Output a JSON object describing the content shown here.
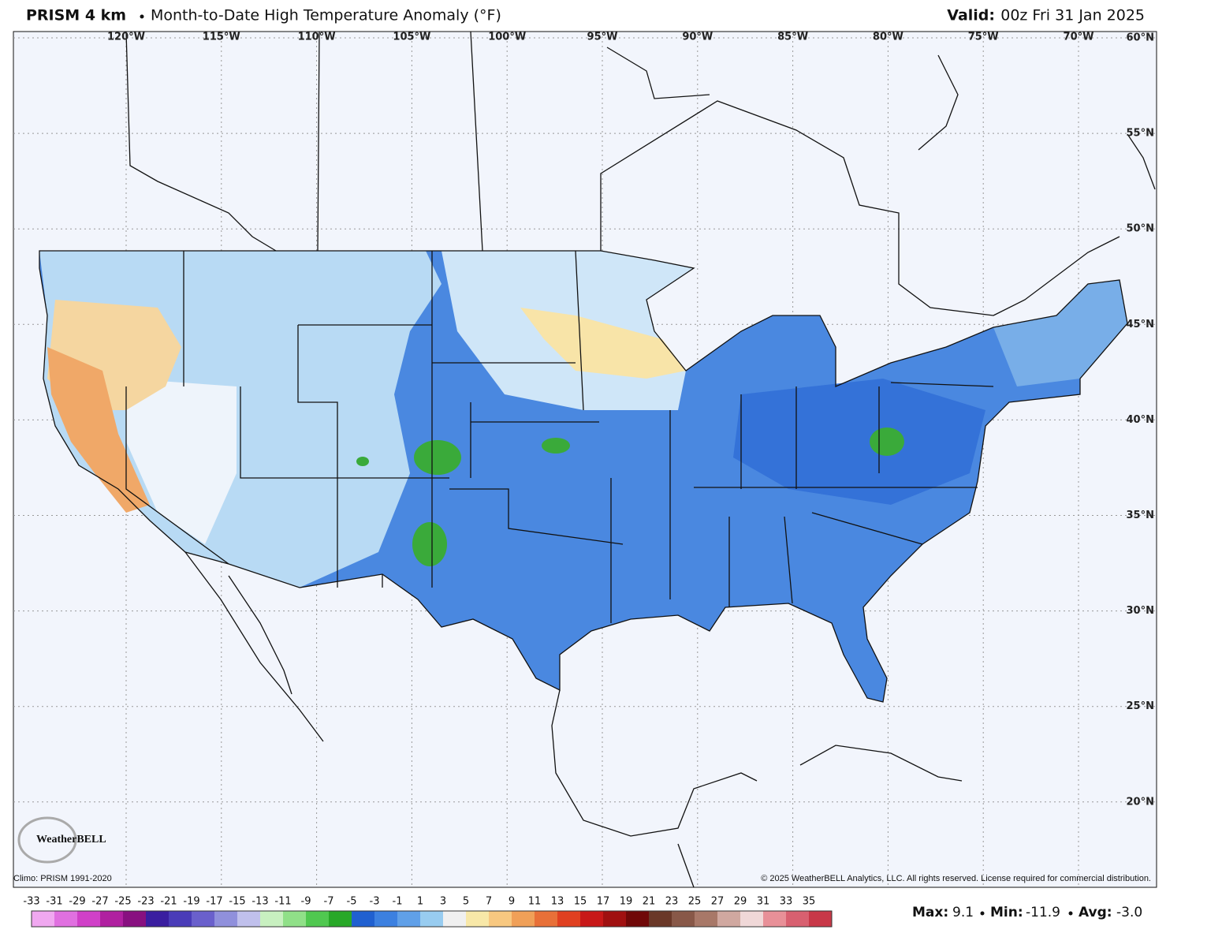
{
  "header": {
    "product": "PRISM 4 km",
    "title": "Month-to-Date High Temperature Anomaly (°F)",
    "valid_label": "Valid:",
    "valid_value": "00z Fri 31 Jan 2025"
  },
  "map": {
    "lon_labels": [
      "120°W",
      "115°W",
      "110°W",
      "105°W",
      "100°W",
      "95°W",
      "90°W",
      "85°W",
      "80°W",
      "75°W",
      "70°W"
    ],
    "lat_labels": [
      "60°N",
      "55°N",
      "50°N",
      "45°N",
      "40°N",
      "35°N",
      "30°N",
      "25°N",
      "20°N"
    ],
    "logo": "WeatherBELL",
    "climo": "Climo: PRISM 1991-2020",
    "copyright": "© 2025 WeatherBELL Analytics, LLC. All rights reserved. License required for commercial distribution."
  },
  "colorbar": {
    "labels": [
      -33,
      -31,
      -29,
      -27,
      -25,
      -23,
      -21,
      -19,
      -17,
      -15,
      -13,
      -11,
      -9,
      -7,
      -5,
      -3,
      -1,
      1,
      3,
      5,
      7,
      9,
      11,
      13,
      15,
      17,
      19,
      21,
      23,
      25,
      27,
      29,
      31,
      33,
      35
    ],
    "colors": [
      "#f0a8f0",
      "#e070e0",
      "#d040c8",
      "#b020a0",
      "#881080",
      "#3a1ea0",
      "#4a3cb8",
      "#6a60cc",
      "#9090dc",
      "#c0c0ec",
      "#c8f0c0",
      "#90e088",
      "#50c850",
      "#28a828",
      "#2060d0",
      "#3c80e0",
      "#60a0e8",
      "#98ccf0",
      "#f0f0f0",
      "#f8e8a8",
      "#f8c880",
      "#f0a058",
      "#e87038",
      "#e04020",
      "#c81818",
      "#a01010",
      "#700808",
      "#6a3828",
      "#885848",
      "#a87868",
      "#d0a8a0",
      "#f0d8d8",
      "#e89098",
      "#d86070",
      "#c83848"
    ]
  },
  "stats": {
    "max_label": "Max:",
    "max": "9.1",
    "min_label": "Min:",
    "min": "-11.9",
    "avg_label": "Avg:",
    "avg": "-3.0"
  }
}
